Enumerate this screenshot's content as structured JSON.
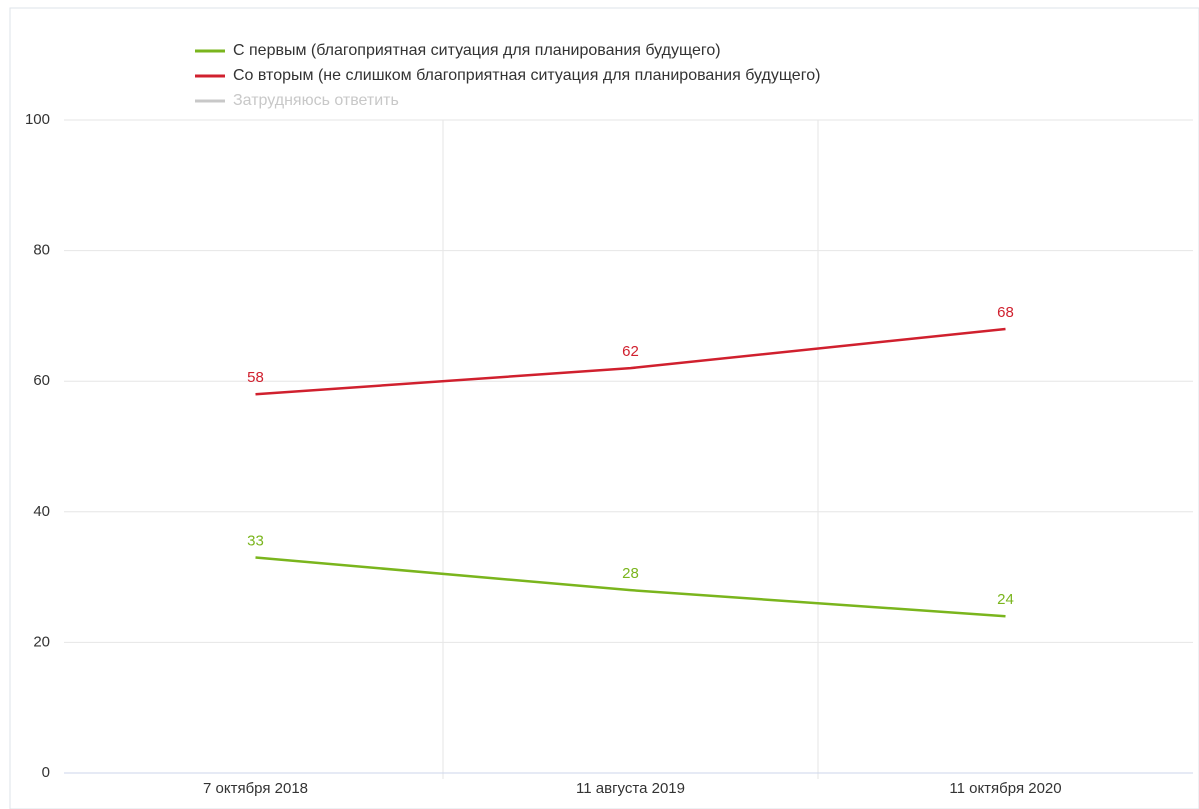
{
  "chart_data": {
    "type": "line",
    "categories": [
      "7 октября 2018",
      "11 августа 2019",
      "11 октября 2020"
    ],
    "series": [
      {
        "name": "С первым (благоприятная ситуация для планирования будущего)",
        "color": "#7ab51d",
        "values": [
          33,
          28,
          24
        ]
      },
      {
        "name": "Со вторым (не слишком благоприятная ситуация для планирования будущего)",
        "color": "#d0202e",
        "values": [
          58,
          62,
          68
        ]
      },
      {
        "name": "Затрудняюсь ответить",
        "color": "#c8c8c8",
        "values": [
          null,
          null,
          null
        ]
      }
    ],
    "ylim": [
      0,
      100
    ],
    "yticks": [
      0,
      20,
      40,
      60,
      80,
      100
    ],
    "grid": true
  }
}
